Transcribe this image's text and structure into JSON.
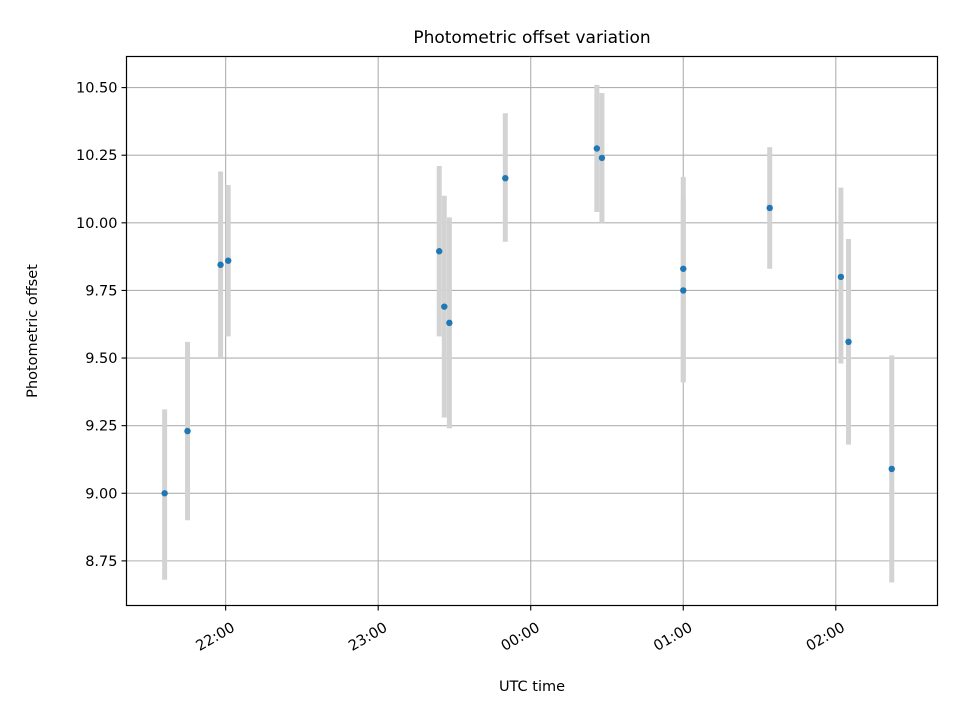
{
  "chart_data": {
    "type": "scatter",
    "title": "Photometric offset variation",
    "xlabel": "UTC time",
    "ylabel": "Photometric offset",
    "grid": true,
    "xaxis": {
      "type": "time",
      "range": [
        "21:21",
        "02:40"
      ],
      "ticks": [
        "22:00",
        "23:00",
        "00:00",
        "01:00",
        "02:00"
      ]
    },
    "yaxis": {
      "range": [
        8.585,
        10.615
      ],
      "ticks": [
        "8.75",
        "9.00",
        "9.25",
        "9.50",
        "9.75",
        "10.00",
        "10.25",
        "10.50"
      ]
    },
    "colors": {
      "point": "#1f77b4",
      "errorbar": "#d3d3d3"
    },
    "points": [
      {
        "time": "21:36",
        "y": 9.0,
        "yerr_low": 8.68,
        "yerr_high": 9.31
      },
      {
        "time": "21:45",
        "y": 9.23,
        "yerr_low": 8.9,
        "yerr_high": 9.56
      },
      {
        "time": "21:58",
        "y": 9.845,
        "yerr_low": 9.5,
        "yerr_high": 10.19
      },
      {
        "time": "22:01",
        "y": 9.86,
        "yerr_low": 9.58,
        "yerr_high": 10.14
      },
      {
        "time": "23:24",
        "y": 9.895,
        "yerr_low": 9.58,
        "yerr_high": 10.21
      },
      {
        "time": "23:26",
        "y": 9.69,
        "yerr_low": 9.28,
        "yerr_high": 10.1
      },
      {
        "time": "23:28",
        "y": 9.63,
        "yerr_low": 9.24,
        "yerr_high": 10.02
      },
      {
        "time": "23:50",
        "y": 10.165,
        "yerr_low": 9.93,
        "yerr_high": 10.405
      },
      {
        "time": "00:26",
        "y": 10.275,
        "yerr_low": 10.04,
        "yerr_high": 10.51
      },
      {
        "time": "00:28",
        "y": 10.24,
        "yerr_low": 10.0,
        "yerr_high": 10.48
      },
      {
        "time": "01:00",
        "y": 9.83,
        "yerr_low": 9.41,
        "yerr_high": 10.17
      },
      {
        "time": "01:00",
        "y": 9.75,
        "yerr_low": 9.41,
        "yerr_high": 10.09
      },
      {
        "time": "01:34",
        "y": 10.055,
        "yerr_low": 9.83,
        "yerr_high": 10.28
      },
      {
        "time": "02:02",
        "y": 9.8,
        "yerr_low": 9.48,
        "yerr_high": 10.13
      },
      {
        "time": "02:05",
        "y": 9.56,
        "yerr_low": 9.18,
        "yerr_high": 9.94
      },
      {
        "time": "02:22",
        "y": 9.09,
        "yerr_low": 8.67,
        "yerr_high": 9.51
      }
    ]
  }
}
